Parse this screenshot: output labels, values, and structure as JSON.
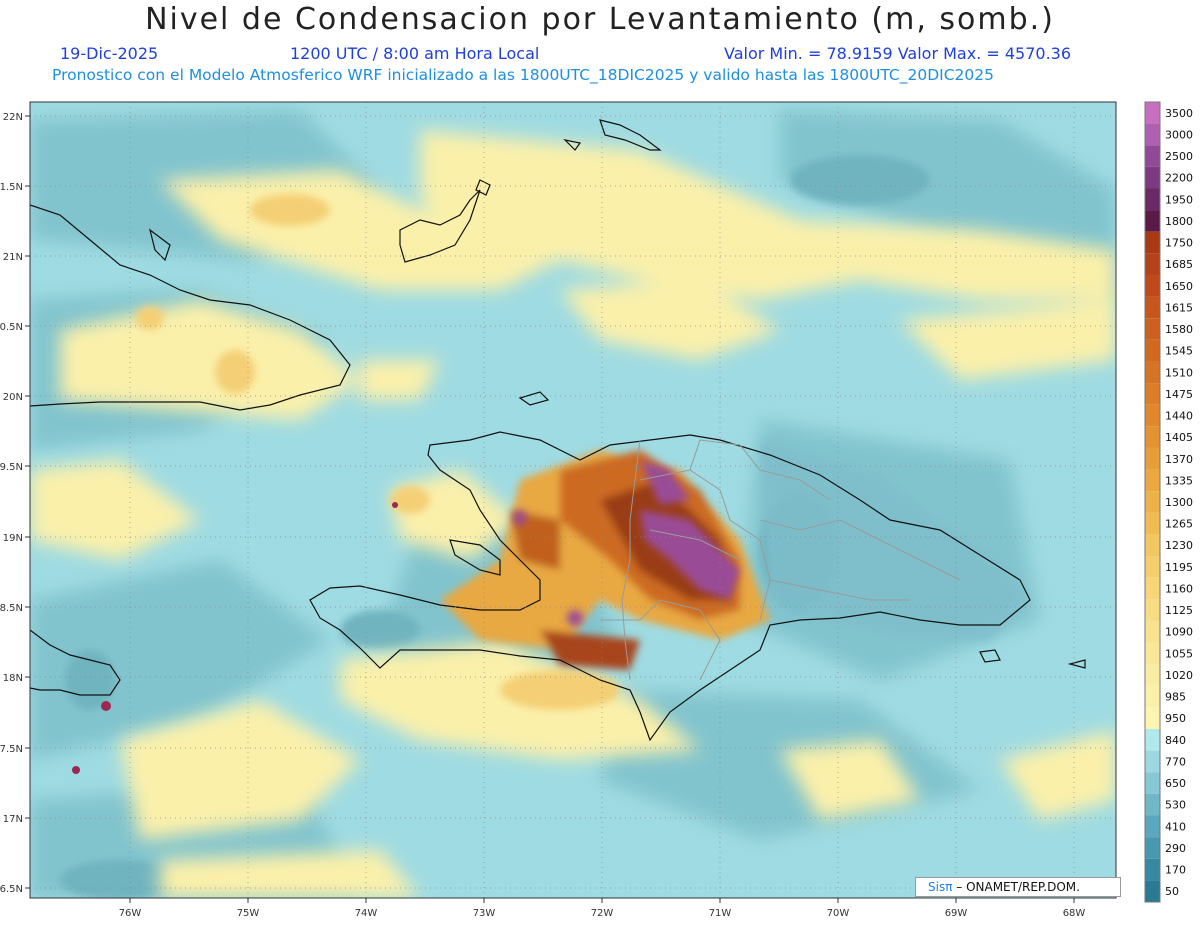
{
  "header": {
    "title": "Nivel de Condensacion por Levantamiento (m, somb.)",
    "date": "19-Dic-2025",
    "time": "1200 UTC / 8:00 am Hora Local",
    "minmax": "Valor Min. = 78.9159  Valor Max. = 4570.36",
    "description": "Pronostico con el Modelo Atmosferico WRF inicializado a las 1800UTC_18DIC2025 y valido hasta las  1800UTC_20DIC2025"
  },
  "map": {
    "lon_labels": [
      "76W",
      "75W",
      "74W",
      "73W",
      "72W",
      "71W",
      "70W",
      "69W",
      "68W"
    ],
    "lat_labels": [
      "22N",
      "1.5N",
      "21N",
      "0.5N",
      "20N",
      "9.5N",
      "19N",
      "8.5N",
      "18N",
      "7.5N",
      "17N",
      "6.5N"
    ]
  },
  "legend": {
    "levels": [
      "3500",
      "3000",
      "2500",
      "2200",
      "1950",
      "1800",
      "1750",
      "1685",
      "1650",
      "1615",
      "1580",
      "1545",
      "1510",
      "1475",
      "1440",
      "1405",
      "1370",
      "1335",
      "1300",
      "1265",
      "1230",
      "1195",
      "1160",
      "1125",
      "1090",
      "1055",
      "1020",
      "985",
      "950",
      "840",
      "770",
      "650",
      "530",
      "410",
      "290",
      "170",
      "50"
    ],
    "colors": [
      "#c870c0",
      "#b060b0",
      "#904a98",
      "#7c3a80",
      "#6a2a66",
      "#5a1a48",
      "#a83a16",
      "#b4421a",
      "#bd4b1c",
      "#c4561e",
      "#cb6020",
      "#d06a22",
      "#d57426",
      "#da7e2a",
      "#df882e",
      "#e39332",
      "#e69e38",
      "#e9a840",
      "#ecb24a",
      "#efbc54",
      "#f2c660",
      "#f4ce6c",
      "#f6d678",
      "#f7dc84",
      "#f8e290",
      "#f9e89a",
      "#faeca2",
      "#fbf0aa",
      "#fdf4b2",
      "#b0e8ec",
      "#9cd8e0",
      "#86c8d4",
      "#70b8c8",
      "#5aa8bc",
      "#4898b0",
      "#3888a2",
      "#2a7a94"
    ]
  },
  "credit": {
    "logo": "Sisπ",
    "text": " – ONAMET/REP.DOM."
  }
}
